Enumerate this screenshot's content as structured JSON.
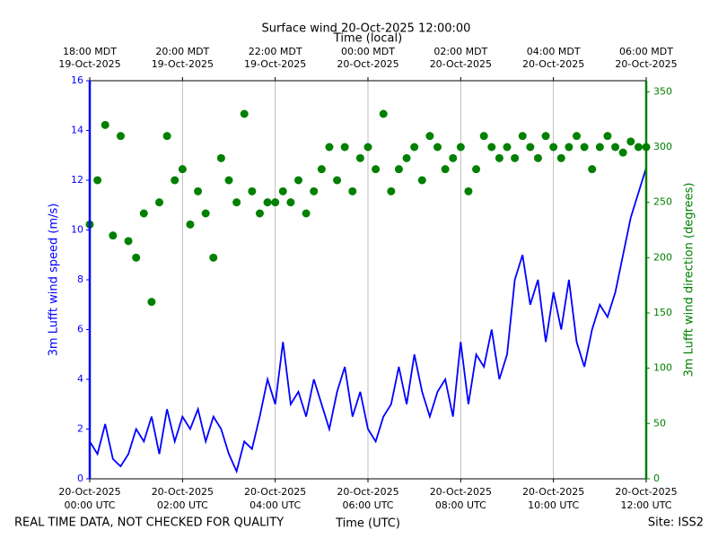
{
  "chart_data": {
    "type": "line",
    "title": "Surface wind 20-Oct-2025 12:00:00",
    "x2label": "Time (local)",
    "xlabel": "Time (UTC)",
    "ylabel": "3m Lufft wind speed (m/s)",
    "y2label": "3m Lufft wind direction (degrees)",
    "footer_left": "REAL TIME DATA, NOT CHECKED FOR QUALITY",
    "footer_right": "Site: ISS2",
    "grid": true,
    "xlim": [
      "2025-10-20T00:00",
      "2025-10-20T12:00"
    ],
    "xticks": [
      {
        "value": "2025-10-20T00:00",
        "label": [
          "20-Oct-2025",
          "00:00 UTC"
        ]
      },
      {
        "value": "2025-10-20T02:00",
        "label": [
          "20-Oct-2025",
          "02:00 UTC"
        ]
      },
      {
        "value": "2025-10-20T04:00",
        "label": [
          "20-Oct-2025",
          "04:00 UTC"
        ]
      },
      {
        "value": "2025-10-20T06:00",
        "label": [
          "20-Oct-2025",
          "06:00 UTC"
        ]
      },
      {
        "value": "2025-10-20T08:00",
        "label": [
          "20-Oct-2025",
          "08:00 UTC"
        ]
      },
      {
        "value": "2025-10-20T10:00",
        "label": [
          "20-Oct-2025",
          "10:00 UTC"
        ]
      },
      {
        "value": "2025-10-20T12:00",
        "label": [
          "20-Oct-2025",
          "12:00 UTC"
        ]
      }
    ],
    "x2ticks": [
      {
        "value": "2025-10-20T00:00",
        "label": [
          "18:00 MDT",
          "19-Oct-2025"
        ]
      },
      {
        "value": "2025-10-20T02:00",
        "label": [
          "20:00 MDT",
          "19-Oct-2025"
        ]
      },
      {
        "value": "2025-10-20T04:00",
        "label": [
          "22:00 MDT",
          "19-Oct-2025"
        ]
      },
      {
        "value": "2025-10-20T06:00",
        "label": [
          "00:00 MDT",
          "20-Oct-2025"
        ]
      },
      {
        "value": "2025-10-20T08:00",
        "label": [
          "02:00 MDT",
          "20-Oct-2025"
        ]
      },
      {
        "value": "2025-10-20T10:00",
        "label": [
          "04:00 MDT",
          "20-Oct-2025"
        ]
      },
      {
        "value": "2025-10-20T12:00",
        "label": [
          "06:00 MDT",
          "20-Oct-2025"
        ]
      }
    ],
    "ylim": [
      0,
      16
    ],
    "yticks": [
      0,
      2,
      4,
      6,
      8,
      10,
      12,
      14,
      16
    ],
    "y2lim": [
      0,
      360
    ],
    "y2ticks": [
      0,
      50,
      100,
      150,
      200,
      250,
      300,
      350
    ],
    "x": [
      "2025-10-20T00:00",
      "2025-10-20T00:10",
      "2025-10-20T00:20",
      "2025-10-20T00:30",
      "2025-10-20T00:40",
      "2025-10-20T00:50",
      "2025-10-20T01:00",
      "2025-10-20T01:10",
      "2025-10-20T01:20",
      "2025-10-20T01:30",
      "2025-10-20T01:40",
      "2025-10-20T01:50",
      "2025-10-20T02:00",
      "2025-10-20T02:10",
      "2025-10-20T02:20",
      "2025-10-20T02:30",
      "2025-10-20T02:40",
      "2025-10-20T02:50",
      "2025-10-20T03:00",
      "2025-10-20T03:10",
      "2025-10-20T03:20",
      "2025-10-20T03:30",
      "2025-10-20T03:40",
      "2025-10-20T03:50",
      "2025-10-20T04:00",
      "2025-10-20T04:10",
      "2025-10-20T04:20",
      "2025-10-20T04:30",
      "2025-10-20T04:40",
      "2025-10-20T04:50",
      "2025-10-20T05:00",
      "2025-10-20T05:10",
      "2025-10-20T05:20",
      "2025-10-20T05:30",
      "2025-10-20T05:40",
      "2025-10-20T05:50",
      "2025-10-20T06:00",
      "2025-10-20T06:10",
      "2025-10-20T06:20",
      "2025-10-20T06:30",
      "2025-10-20T06:40",
      "2025-10-20T06:50",
      "2025-10-20T07:00",
      "2025-10-20T07:10",
      "2025-10-20T07:20",
      "2025-10-20T07:30",
      "2025-10-20T07:40",
      "2025-10-20T07:50",
      "2025-10-20T08:00",
      "2025-10-20T08:10",
      "2025-10-20T08:20",
      "2025-10-20T08:30",
      "2025-10-20T08:40",
      "2025-10-20T08:50",
      "2025-10-20T09:00",
      "2025-10-20T09:10",
      "2025-10-20T09:20",
      "2025-10-20T09:30",
      "2025-10-20T09:40",
      "2025-10-20T09:50",
      "2025-10-20T10:00",
      "2025-10-20T10:10",
      "2025-10-20T10:20",
      "2025-10-20T10:30",
      "2025-10-20T10:40",
      "2025-10-20T10:50",
      "2025-10-20T11:00",
      "2025-10-20T11:10",
      "2025-10-20T11:20",
      "2025-10-20T11:30",
      "2025-10-20T11:40",
      "2025-10-20T11:50",
      "2025-10-20T12:00"
    ],
    "series": [
      {
        "name": "3m Lufft wind speed",
        "type": "line",
        "axis": "y",
        "color": "#0000ff",
        "values": [
          1.5,
          1,
          2.2,
          0.8,
          0.5,
          1,
          2,
          1.5,
          2.5,
          1,
          2.8,
          1.5,
          2.5,
          2,
          2.8,
          1.5,
          2.5,
          2,
          1,
          0.3,
          1.5,
          1.2,
          2.5,
          4,
          3,
          5.5,
          3,
          3.5,
          2.5,
          4,
          3,
          2,
          3.5,
          4.5,
          2.5,
          3.5,
          2,
          1.5,
          2.5,
          3,
          4.5,
          3,
          5,
          3.5,
          2.5,
          3.5,
          4,
          2.5,
          5.5,
          3,
          5,
          4.5,
          6,
          4,
          5,
          8,
          9,
          7,
          8,
          5.5,
          7.5,
          6,
          8,
          5.5,
          4.5,
          6,
          7,
          6.5,
          7.5,
          9,
          10.5,
          11.5,
          12.5
        ]
      },
      {
        "name": "3m Lufft wind direction",
        "type": "scatter",
        "axis": "y2",
        "color": "#008000",
        "values": [
          230,
          270,
          320,
          220,
          310,
          215,
          200,
          240,
          160,
          250,
          310,
          270,
          280,
          230,
          260,
          240,
          200,
          290,
          270,
          250,
          330,
          260,
          240,
          250,
          250,
          260,
          250,
          270,
          240,
          260,
          280,
          300,
          270,
          300,
          260,
          290,
          300,
          280,
          330,
          260,
          280,
          290,
          300,
          270,
          310,
          300,
          280,
          290,
          300,
          260,
          280,
          310,
          300,
          290,
          300,
          290,
          310,
          300,
          290,
          310,
          300,
          290,
          300,
          310,
          300,
          280,
          300,
          310,
          300,
          295,
          305,
          300,
          300
        ]
      }
    ]
  }
}
